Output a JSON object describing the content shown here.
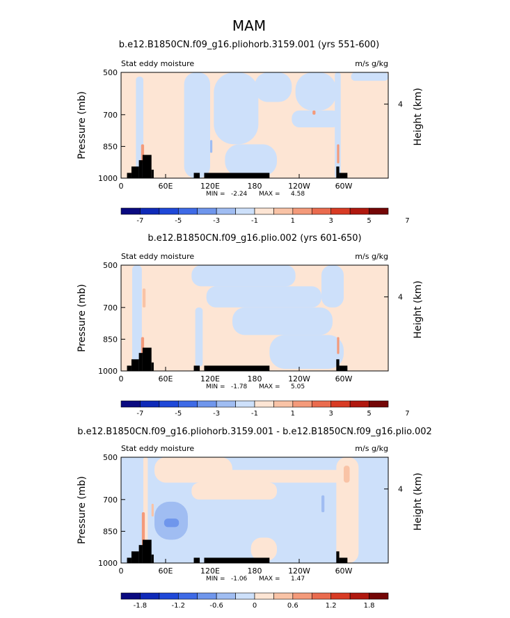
{
  "figure": {
    "title": "MAM"
  },
  "colors": {
    "background": "#ffffff",
    "orography": "#000000",
    "palette": [
      "#0a0a80",
      "#0f2ab8",
      "#1f48d8",
      "#3e6ae6",
      "#6f96ec",
      "#a0bdf2",
      "#cde0fa",
      "#fde5d4",
      "#f9c3a6",
      "#f49a7a",
      "#ea6b4e",
      "#d83b24",
      "#b0180e",
      "#740606"
    ]
  },
  "chart_data": [
    {
      "type": "heatmap",
      "title": "b.e12.B1850CN.f09_g16.pliohorb.3159.001 (yrs 551-600)",
      "left_label": "Stat eddy moisture",
      "right_label": "m/s g/kg",
      "ylabel": "Pressure (mb)",
      "y2label": "Height (km)",
      "yticks": [
        500,
        700,
        850,
        1000
      ],
      "y2ticks": [
        4
      ],
      "xticks": [
        "0",
        "60E",
        "120E",
        "180",
        "120W",
        "60W"
      ],
      "min_label": "MIN =",
      "min_value": "-2.24",
      "max_label": "MAX =",
      "max_value": "4.58",
      "colorbar_labels": [
        "-7",
        "-5",
        "-3",
        "-1",
        "1",
        "3",
        "5",
        "7"
      ],
      "base_color": "#fde5d4",
      "features": [
        {
          "lon_from": 20,
          "lon_to": 30,
          "p_top": 520,
          "p_bottom": 1000,
          "color": "#cde0fa"
        },
        {
          "lon_from": 85,
          "lon_to": 120,
          "p_top": 500,
          "p_bottom": 1000,
          "color": "#cde0fa"
        },
        {
          "lon_from": 125,
          "lon_to": 185,
          "p_top": 500,
          "p_bottom": 840,
          "color": "#cde0fa"
        },
        {
          "lon_from": 140,
          "lon_to": 210,
          "p_top": 840,
          "p_bottom": 990,
          "color": "#cde0fa"
        },
        {
          "lon_from": 180,
          "lon_to": 230,
          "p_top": 500,
          "p_bottom": 640,
          "color": "#cde0fa"
        },
        {
          "lon_from": 235,
          "lon_to": 290,
          "p_top": 500,
          "p_bottom": 680,
          "color": "#cde0fa"
        },
        {
          "lon_from": 230,
          "lon_to": 295,
          "p_top": 680,
          "p_bottom": 760,
          "color": "#cde0fa"
        },
        {
          "lon_from": 288,
          "lon_to": 296,
          "p_top": 500,
          "p_bottom": 1000,
          "color": "#cde0fa"
        },
        {
          "lon_from": 310,
          "lon_to": 360,
          "p_top": 500,
          "p_bottom": 540,
          "color": "#cde0fa"
        },
        {
          "lon_from": 27,
          "lon_to": 31,
          "p_top": 840,
          "p_bottom": 930,
          "color": "#f49a7a"
        },
        {
          "lon_from": 291,
          "lon_to": 294,
          "p_top": 840,
          "p_bottom": 930,
          "color": "#f49a7a"
        },
        {
          "lon_from": 258,
          "lon_to": 262,
          "p_top": 680,
          "p_bottom": 700,
          "color": "#f49a7a"
        },
        {
          "lon_from": 120,
          "lon_to": 123,
          "p_top": 820,
          "p_bottom": 880,
          "color": "#a0bdf2"
        }
      ],
      "orography": [
        {
          "lon_from": 8,
          "lon_to": 14,
          "p_top": 975
        },
        {
          "lon_from": 14,
          "lon_to": 24,
          "p_top": 945
        },
        {
          "lon_from": 24,
          "lon_to": 29,
          "p_top": 915
        },
        {
          "lon_from": 29,
          "lon_to": 41,
          "p_top": 890
        },
        {
          "lon_from": 41,
          "lon_to": 44,
          "p_top": 960
        },
        {
          "lon_from": 98,
          "lon_to": 106,
          "p_top": 975
        },
        {
          "lon_from": 112,
          "lon_to": 135,
          "p_top": 975
        },
        {
          "lon_from": 135,
          "lon_to": 200,
          "p_top": 975
        },
        {
          "lon_from": 290,
          "lon_to": 294,
          "p_top": 945
        },
        {
          "lon_from": 294,
          "lon_to": 305,
          "p_top": 975
        }
      ]
    },
    {
      "type": "heatmap",
      "title": "b.e12.B1850CN.f09_g16.plio.002 (yrs 601-650)",
      "left_label": "Stat eddy moisture",
      "right_label": "m/s g/kg",
      "ylabel": "Pressure (mb)",
      "y2label": "Height (km)",
      "yticks": [
        500,
        700,
        850,
        1000
      ],
      "y2ticks": [
        4
      ],
      "xticks": [
        "0",
        "60E",
        "120E",
        "180",
        "120W",
        "60W"
      ],
      "min_label": "MIN =",
      "min_value": "-1.78",
      "max_label": "MAX =",
      "max_value": "5.05",
      "colorbar_labels": [
        "-7",
        "-5",
        "-3",
        "-1",
        "1",
        "3",
        "5",
        "7"
      ],
      "base_color": "#fde5d4",
      "features": [
        {
          "lon_from": 15,
          "lon_to": 28,
          "p_top": 500,
          "p_bottom": 1000,
          "color": "#cde0fa"
        },
        {
          "lon_from": 95,
          "lon_to": 235,
          "p_top": 500,
          "p_bottom": 600,
          "color": "#cde0fa"
        },
        {
          "lon_from": 115,
          "lon_to": 270,
          "p_top": 600,
          "p_bottom": 700,
          "color": "#cde0fa"
        },
        {
          "lon_from": 150,
          "lon_to": 285,
          "p_top": 700,
          "p_bottom": 830,
          "color": "#cde0fa"
        },
        {
          "lon_from": 200,
          "lon_to": 300,
          "p_top": 830,
          "p_bottom": 990,
          "color": "#cde0fa"
        },
        {
          "lon_from": 270,
          "lon_to": 300,
          "p_top": 500,
          "p_bottom": 700,
          "color": "#cde0fa"
        },
        {
          "lon_from": 100,
          "lon_to": 110,
          "p_top": 700,
          "p_bottom": 980,
          "color": "#cde0fa"
        },
        {
          "lon_from": 29,
          "lon_to": 33,
          "p_top": 610,
          "p_bottom": 700,
          "color": "#f9c3a6"
        },
        {
          "lon_from": 27,
          "lon_to": 31,
          "p_top": 840,
          "p_bottom": 920,
          "color": "#f49a7a"
        },
        {
          "lon_from": 291,
          "lon_to": 294,
          "p_top": 840,
          "p_bottom": 920,
          "color": "#f49a7a"
        }
      ],
      "orography": [
        {
          "lon_from": 8,
          "lon_to": 14,
          "p_top": 975
        },
        {
          "lon_from": 14,
          "lon_to": 24,
          "p_top": 945
        },
        {
          "lon_from": 24,
          "lon_to": 29,
          "p_top": 915
        },
        {
          "lon_from": 29,
          "lon_to": 41,
          "p_top": 890
        },
        {
          "lon_from": 41,
          "lon_to": 44,
          "p_top": 960
        },
        {
          "lon_from": 98,
          "lon_to": 106,
          "p_top": 975
        },
        {
          "lon_from": 112,
          "lon_to": 135,
          "p_top": 975
        },
        {
          "lon_from": 135,
          "lon_to": 200,
          "p_top": 975
        },
        {
          "lon_from": 290,
          "lon_to": 294,
          "p_top": 945
        },
        {
          "lon_from": 294,
          "lon_to": 305,
          "p_top": 975
        }
      ]
    },
    {
      "type": "heatmap",
      "title": "b.e12.B1850CN.f09_g16.pliohorb.3159.001 - b.e12.B1850CN.f09_g16.plio.002",
      "left_label": "Stat eddy moisture",
      "right_label": "m/s g/kg",
      "ylabel": "Pressure (mb)",
      "y2label": "Height (km)",
      "yticks": [
        500,
        700,
        850,
        1000
      ],
      "y2ticks": [
        4
      ],
      "xticks": [
        "0",
        "60E",
        "120E",
        "180",
        "120W",
        "60W"
      ],
      "min_label": "MIN =",
      "min_value": "-1.06",
      "max_label": "MAX =",
      "max_value": "1.47",
      "colorbar_labels": [
        "-1.8",
        "-1.2",
        "-0.6",
        "0",
        "0.6",
        "1.2",
        "1.8"
      ],
      "base_color": "#cde0fa",
      "features": [
        {
          "lon_from": 45,
          "lon_to": 150,
          "p_top": 500,
          "p_bottom": 620,
          "color": "#fde5d4"
        },
        {
          "lon_from": 95,
          "lon_to": 210,
          "p_top": 620,
          "p_bottom": 700,
          "color": "#fde5d4"
        },
        {
          "lon_from": 120,
          "lon_to": 300,
          "p_top": 560,
          "p_bottom": 620,
          "color": "#fde5d4"
        },
        {
          "lon_from": 290,
          "lon_to": 320,
          "p_top": 500,
          "p_bottom": 1000,
          "color": "#fde5d4"
        },
        {
          "lon_from": 30,
          "lon_to": 36,
          "p_top": 500,
          "p_bottom": 1000,
          "color": "#fde5d4"
        },
        {
          "lon_from": 175,
          "lon_to": 210,
          "p_top": 880,
          "p_bottom": 990,
          "color": "#fde5d4"
        },
        {
          "lon_from": 45,
          "lon_to": 90,
          "p_top": 710,
          "p_bottom": 890,
          "color": "#a0bdf2"
        },
        {
          "lon_from": 58,
          "lon_to": 78,
          "p_top": 790,
          "p_bottom": 830,
          "color": "#6f96ec"
        },
        {
          "lon_from": 300,
          "lon_to": 308,
          "p_top": 540,
          "p_bottom": 620,
          "color": "#f9c3a6"
        },
        {
          "lon_from": 28,
          "lon_to": 32,
          "p_top": 760,
          "p_bottom": 920,
          "color": "#f49a7a"
        },
        {
          "lon_from": 41,
          "lon_to": 44,
          "p_top": 720,
          "p_bottom": 780,
          "color": "#f9c3a6"
        },
        {
          "lon_from": 270,
          "lon_to": 274,
          "p_top": 680,
          "p_bottom": 760,
          "color": "#a0bdf2"
        }
      ],
      "orography": [
        {
          "lon_from": 8,
          "lon_to": 14,
          "p_top": 975
        },
        {
          "lon_from": 14,
          "lon_to": 24,
          "p_top": 945
        },
        {
          "lon_from": 24,
          "lon_to": 29,
          "p_top": 915
        },
        {
          "lon_from": 29,
          "lon_to": 41,
          "p_top": 890
        },
        {
          "lon_from": 41,
          "lon_to": 44,
          "p_top": 960
        },
        {
          "lon_from": 98,
          "lon_to": 106,
          "p_top": 975
        },
        {
          "lon_from": 112,
          "lon_to": 135,
          "p_top": 975
        },
        {
          "lon_from": 135,
          "lon_to": 200,
          "p_top": 975
        },
        {
          "lon_from": 290,
          "lon_to": 294,
          "p_top": 945
        },
        {
          "lon_from": 294,
          "lon_to": 305,
          "p_top": 975
        }
      ]
    }
  ]
}
